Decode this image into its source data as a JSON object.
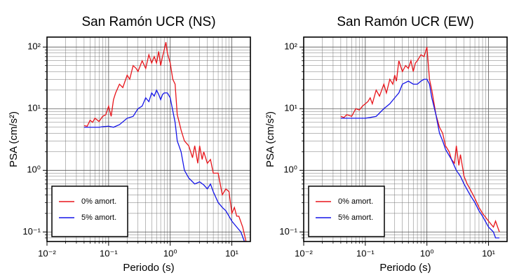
{
  "chart_data": [
    {
      "type": "line",
      "title": "San Ramón UCR (NS)",
      "x_label": "Periodo (s)",
      "y_label": "PSA (cm/s²)",
      "log_x": true,
      "log_y": true,
      "grid": true,
      "legend": "lower left",
      "xlim": [
        0.01,
        20
      ],
      "ylim": [
        0.07,
        145
      ],
      "xticks": [
        {
          "value": 0.01,
          "label": "10⁻²"
        },
        {
          "value": 0.1,
          "label": "10⁻¹"
        },
        {
          "value": 1,
          "label": "10⁰"
        },
        {
          "value": 10,
          "label": "10¹"
        }
      ],
      "yticks": [
        {
          "value": 0.1,
          "label": "10⁻¹"
        },
        {
          "value": 1,
          "label": "10⁰"
        },
        {
          "value": 10,
          "label": "10¹"
        },
        {
          "value": 100,
          "label": "10²"
        }
      ],
      "series": [
        {
          "name": "0% amort.",
          "color": "#e8151b",
          "x": [
            0.04,
            0.045,
            0.05,
            0.055,
            0.06,
            0.07,
            0.08,
            0.09,
            0.1,
            0.11,
            0.12,
            0.13,
            0.15,
            0.17,
            0.2,
            0.22,
            0.25,
            0.28,
            0.3,
            0.35,
            0.4,
            0.45,
            0.5,
            0.55,
            0.6,
            0.65,
            0.7,
            0.75,
            0.8,
            0.85,
            0.9,
            1.0,
            1.1,
            1.2,
            1.3,
            1.4,
            1.5,
            1.7,
            2,
            2.3,
            2.5,
            2.8,
            3,
            3.3,
            3.5,
            4,
            4.5,
            5,
            6,
            7,
            8,
            9,
            10,
            11,
            12,
            13,
            15,
            17
          ],
          "values": [
            5.3,
            5.2,
            6.5,
            6.0,
            7.0,
            6.2,
            7.5,
            8.0,
            11,
            7.5,
            14,
            18,
            25,
            22,
            35,
            30,
            50,
            45,
            40,
            60,
            45,
            75,
            55,
            70,
            55,
            85,
            50,
            70,
            90,
            120,
            80,
            55,
            30,
            25,
            8,
            6,
            4.5,
            3,
            2.5,
            1.6,
            2.5,
            1.3,
            2.5,
            1.5,
            2.0,
            1.3,
            1.5,
            0.9,
            0.9,
            0.4,
            0.5,
            0.45,
            0.2,
            0.25,
            0.18,
            0.18,
            0.12,
            0.07
          ]
        },
        {
          "name": "5% amort.",
          "color": "#1515e8",
          "x": [
            0.04,
            0.05,
            0.06,
            0.07,
            0.08,
            0.1,
            0.12,
            0.15,
            0.2,
            0.25,
            0.3,
            0.35,
            0.4,
            0.45,
            0.5,
            0.55,
            0.6,
            0.65,
            0.7,
            0.75,
            0.8,
            0.9,
            1.0,
            1.2,
            1.3,
            1.5,
            1.7,
            2,
            2.5,
            3,
            3.5,
            4,
            4.5,
            5,
            6,
            7,
            8,
            10,
            12,
            14,
            16
          ],
          "values": [
            5.0,
            5.0,
            5.0,
            5.0,
            5.1,
            5.2,
            5.0,
            5.5,
            7.0,
            7.5,
            10,
            11,
            15,
            13,
            18,
            16,
            20,
            17,
            14,
            17,
            18,
            18,
            15,
            6,
            3,
            2.0,
            1.0,
            0.75,
            0.6,
            0.65,
            0.58,
            0.5,
            0.6,
            0.45,
            0.3,
            0.25,
            0.22,
            0.15,
            0.12,
            0.1,
            0.07
          ]
        }
      ]
    },
    {
      "type": "line",
      "title": "San Ramón UCR (EW)",
      "x_label": "Periodo (s)",
      "y_label": "PSA (cm/s²)",
      "log_x": true,
      "log_y": true,
      "grid": true,
      "legend": "lower left",
      "xlim": [
        0.01,
        20
      ],
      "ylim": [
        0.07,
        145
      ],
      "xticks": [
        {
          "value": 0.01,
          "label": "10⁻²"
        },
        {
          "value": 0.1,
          "label": "10⁻¹"
        },
        {
          "value": 1,
          "label": "10⁰"
        },
        {
          "value": 10,
          "label": "10¹"
        }
      ],
      "yticks": [
        {
          "value": 0.1,
          "label": "10⁻¹"
        },
        {
          "value": 1,
          "label": "10⁰"
        },
        {
          "value": 10,
          "label": "10¹"
        },
        {
          "value": 100,
          "label": "10²"
        }
      ],
      "series": [
        {
          "name": "0% amort.",
          "color": "#e8151b",
          "x": [
            0.04,
            0.045,
            0.05,
            0.06,
            0.07,
            0.08,
            0.09,
            0.1,
            0.11,
            0.12,
            0.13,
            0.15,
            0.17,
            0.2,
            0.22,
            0.25,
            0.28,
            0.3,
            0.32,
            0.35,
            0.4,
            0.45,
            0.5,
            0.55,
            0.6,
            0.65,
            0.7,
            0.8,
            0.9,
            1.0,
            1.1,
            1.2,
            1.4,
            1.6,
            1.8,
            2,
            2.3,
            2.5,
            2.8,
            3,
            3.3,
            3.5,
            4,
            4.5,
            5,
            6,
            7,
            8,
            10,
            12,
            13,
            15
          ],
          "values": [
            7.5,
            7.2,
            8.0,
            7.5,
            10,
            9.5,
            11,
            12,
            13,
            15,
            12,
            20,
            16,
            25,
            18,
            30,
            25,
            35,
            28,
            60,
            40,
            50,
            45,
            60,
            40,
            55,
            60,
            75,
            70,
            100,
            30,
            20,
            8,
            5,
            4,
            2.5,
            2.0,
            1.5,
            1.3,
            2.5,
            1.2,
            1.8,
            0.8,
            0.6,
            0.5,
            0.35,
            0.25,
            0.2,
            0.15,
            0.12,
            0.15,
            0.1
          ]
        },
        {
          "name": "5% amort.",
          "color": "#1515e8",
          "x": [
            0.04,
            0.05,
            0.07,
            0.1,
            0.12,
            0.15,
            0.2,
            0.25,
            0.3,
            0.35,
            0.4,
            0.5,
            0.6,
            0.7,
            0.8,
            0.9,
            1.0,
            1.1,
            1.2,
            1.4,
            1.6,
            1.8,
            2,
            2.5,
            3,
            3.5,
            4,
            5,
            6,
            7,
            8,
            10,
            12,
            13,
            15
          ],
          "values": [
            7.0,
            7.0,
            7.0,
            7.0,
            7.2,
            7.5,
            10,
            12,
            15,
            18,
            25,
            28,
            25,
            25,
            28,
            30,
            30,
            25,
            15,
            8,
            4,
            3,
            2.2,
            1.5,
            1.0,
            0.8,
            0.6,
            0.4,
            0.3,
            0.22,
            0.18,
            0.12,
            0.1,
            0.08,
            0.08
          ]
        }
      ]
    }
  ]
}
